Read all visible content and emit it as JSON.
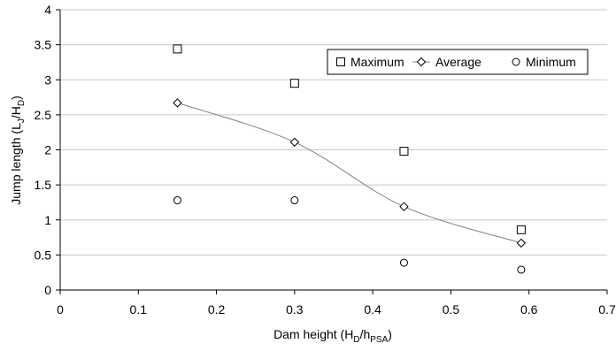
{
  "chart_data": {
    "type": "scatter",
    "xlabel": {
      "main": "Dam height  (H",
      "sub1": "D",
      "mid": "/h",
      "sub2": "PSA",
      "end": ")"
    },
    "ylabel": {
      "main": "Jump  length (L",
      "sub1": "J",
      "mid": "/H",
      "sub2": "D",
      "end": ")"
    },
    "xlim": [
      0,
      0.7
    ],
    "ylim": [
      0,
      4
    ],
    "x_ticks": [
      "0",
      "0.1",
      "0.2",
      "0.3",
      "0.4",
      "0.5",
      "0.6",
      "0.7"
    ],
    "y_ticks": [
      "0",
      "0.5",
      "1",
      "1.5",
      "2",
      "2.5",
      "3",
      "3.5",
      "4"
    ],
    "grid": "horizontal",
    "legend_position": "top-right",
    "series": [
      {
        "name": "Maximum",
        "marker": "square",
        "line": false,
        "x": [
          0.15,
          0.3,
          0.44,
          0.59
        ],
        "y": [
          3.44,
          2.95,
          1.98,
          0.86
        ]
      },
      {
        "name": "Average",
        "marker": "diamond",
        "line": true,
        "x": [
          0.15,
          0.3,
          0.44,
          0.59
        ],
        "y": [
          2.67,
          2.11,
          1.19,
          0.67
        ]
      },
      {
        "name": "Minimum",
        "marker": "circle",
        "line": false,
        "x": [
          0.15,
          0.3,
          0.44,
          0.59
        ],
        "y": [
          1.28,
          1.28,
          0.39,
          0.29
        ]
      }
    ],
    "colors": {
      "marker": "#000000",
      "line": "#808080",
      "grid": "#c8c8c8",
      "axis": "#000000"
    }
  }
}
